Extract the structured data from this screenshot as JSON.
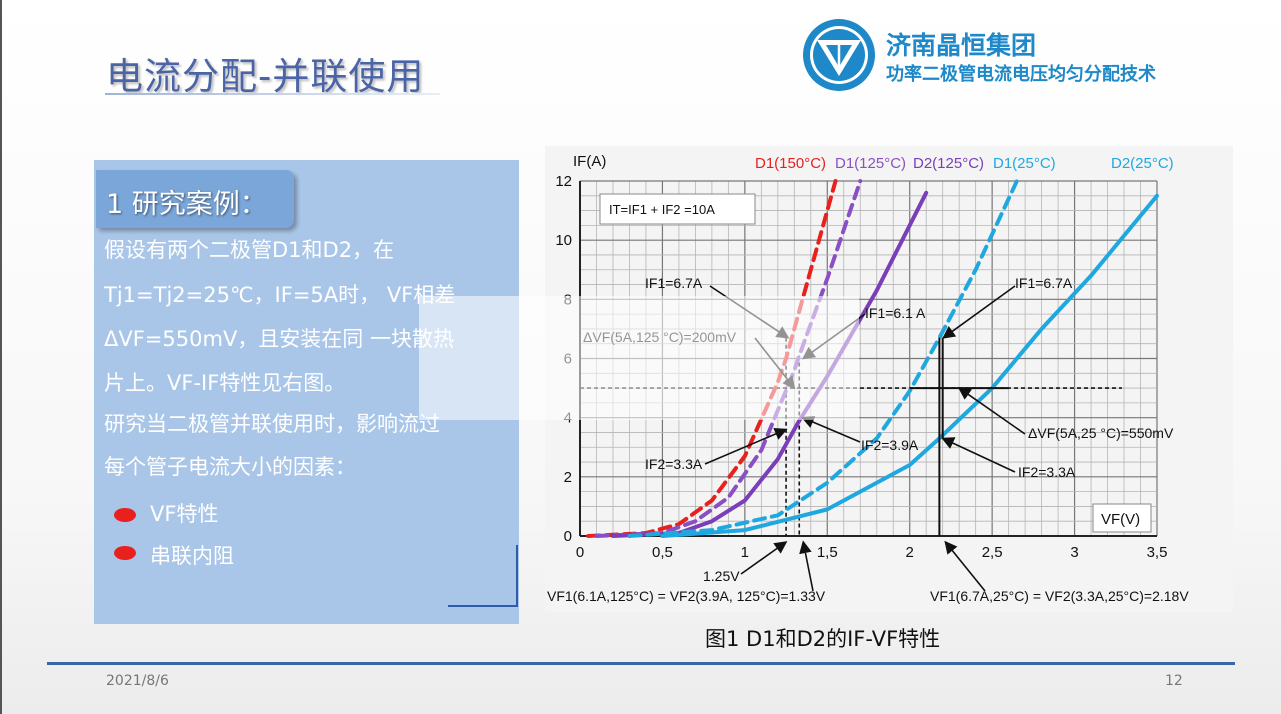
{
  "slide": {
    "title": "电流分配-并联使用",
    "company": "济南晶恒集团",
    "tagline": "功率二极管电流电压均匀分配技术",
    "date": "2021/8/6",
    "page_number": "12"
  },
  "left_panel": {
    "section_heading": "1 研究案例：",
    "paragraph_lines": [
      " 假设有两个二极管D1和D2，在",
      "Tj1=Tj2=25℃，IF=5A时， VF相差",
      "ΔVF=550mV，且安装在同 一块散热",
      "片上。VF-IF特性见右图。",
      "研究当二极管并联使用时，影响流过",
      "每个管子电流大小的因素："
    ],
    "bullets": [
      "VF特性",
      "串联内阻"
    ],
    "bullet_color": "#e8201e"
  },
  "figure": {
    "caption": "图1 D1和D2的IF-VF特性",
    "y_axis_label": "IF(A)",
    "x_axis_label": "VF(V)",
    "y_ticks": [
      "0",
      "2",
      "4",
      "6",
      "8",
      "10",
      "12"
    ],
    "x_ticks": [
      "0",
      "0,5",
      "1",
      "1,5",
      "2",
      "2,5",
      "3",
      "3,5"
    ],
    "annotations": {
      "total": "IT=IF1 + IF2 =10A",
      "if1_125": "IF1=6.7A",
      "if1_61": "IF1=6.1 A",
      "dvf_125": "ΔVF(5A,125 °C)=200mV",
      "if2_39": "IF2=3.9A",
      "if2_33_left": "IF2=3.3A",
      "if1_25": "IF1=6.7A",
      "dvf_25": "ΔVF(5A,25 °C)=550mV",
      "if2_33_right": "IF2=3.3A",
      "v125": "1.25V",
      "eq_125": "VF1(6.1A,125°C) = VF2(3.9A, 125°C)=1.33V",
      "eq_25": "VF1(6.7A,25°C) = VF2(3.3A,25°C)=2.18V"
    },
    "series_labels": [
      "D1(150°C)",
      "D1(125°C)",
      "D2(125°C)",
      "D1(25°C)",
      "D2(25°C)"
    ],
    "colors": {
      "red": "#e8201e",
      "violet": "#8a4fc4",
      "purple": "#7a3fb8",
      "cyan": "#1fa8e0"
    }
  },
  "chart_data": {
    "type": "line",
    "xlabel": "VF(V)",
    "ylabel": "IF(A)",
    "xlim": [
      0,
      3.5
    ],
    "ylim": [
      0,
      12
    ],
    "series": [
      {
        "name": "D1(150°C)",
        "style": "dashed",
        "color": "#e8201e",
        "x": [
          0.05,
          0.4,
          0.6,
          0.8,
          1.0,
          1.2,
          1.25,
          1.4,
          1.55
        ],
        "y": [
          0,
          0.1,
          0.4,
          1.2,
          2.7,
          5.2,
          6.0,
          9.0,
          12
        ]
      },
      {
        "name": "D1(125°C)",
        "style": "dashed",
        "color": "#8a4fc4",
        "x": [
          0.1,
          0.5,
          0.7,
          0.9,
          1.1,
          1.3,
          1.33,
          1.5,
          1.7
        ],
        "y": [
          0,
          0.1,
          0.5,
          1.3,
          2.9,
          5.6,
          6.1,
          8.7,
          12
        ]
      },
      {
        "name": "D2(125°C)",
        "style": "solid",
        "color": "#7a3fb8",
        "x": [
          0.2,
          0.6,
          0.8,
          1.0,
          1.2,
          1.33,
          1.5,
          1.8,
          2.1
        ],
        "y": [
          0,
          0.1,
          0.5,
          1.2,
          2.6,
          3.9,
          5.4,
          8.3,
          11.6
        ]
      },
      {
        "name": "D1(25°C)",
        "style": "dashed",
        "color": "#1fa8e0",
        "x": [
          0.3,
          0.8,
          1.2,
          1.5,
          1.8,
          2.0,
          2.18,
          2.4,
          2.65
        ],
        "y": [
          0,
          0.2,
          0.7,
          1.8,
          3.3,
          4.9,
          6.7,
          9.0,
          12
        ]
      },
      {
        "name": "D2(25°C)",
        "style": "solid",
        "color": "#1fa8e0",
        "x": [
          0.5,
          1.0,
          1.5,
          2.0,
          2.18,
          2.5,
          2.8,
          3.1,
          3.5
        ],
        "y": [
          0,
          0.2,
          0.9,
          2.4,
          3.3,
          5.0,
          7.0,
          8.8,
          11.5
        ]
      }
    ]
  }
}
